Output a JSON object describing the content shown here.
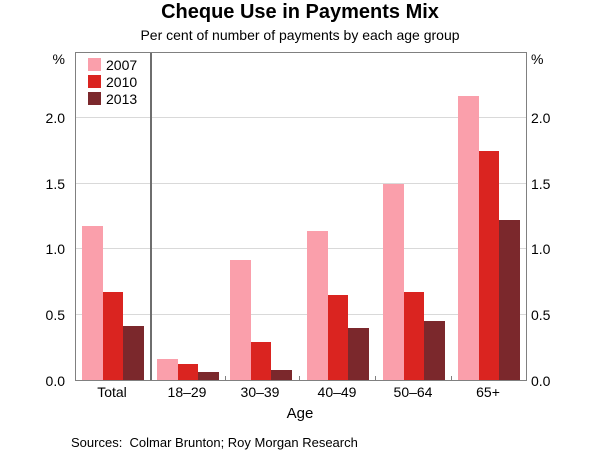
{
  "title": "Cheque Use in Payments Mix",
  "subtitle": "Per cent of number of payments by each age group",
  "axis": {
    "unit_left": "%",
    "unit_right": "%"
  },
  "source": "Sources:  Colmar Brunton; Roy Morgan Research",
  "chart_data": {
    "type": "bar",
    "title": "Cheque Use in Payments Mix",
    "subtitle": "Per cent of number of payments by each age group",
    "xlabel": "Age",
    "ylabel": "%",
    "categories": [
      "Total",
      "18–29",
      "30–39",
      "40–49",
      "50–64",
      "65+"
    ],
    "series": [
      {
        "name": "2007",
        "color": "#FA9FAB",
        "values": [
          1.18,
          0.16,
          0.92,
          1.14,
          1.5,
          2.17
        ]
      },
      {
        "name": "2010",
        "color": "#DA2420",
        "values": [
          0.67,
          0.12,
          0.29,
          0.65,
          0.67,
          1.75
        ]
      },
      {
        "name": "2013",
        "color": "#7B282C",
        "values": [
          0.41,
          0.06,
          0.08,
          0.4,
          0.45,
          1.22
        ]
      }
    ],
    "ylim": [
      0,
      2.5
    ],
    "yticks": [
      0.0,
      0.5,
      1.0,
      1.5,
      2.0
    ],
    "grid": true,
    "legend_position": "top-left",
    "divider_after_first_category": true
  }
}
